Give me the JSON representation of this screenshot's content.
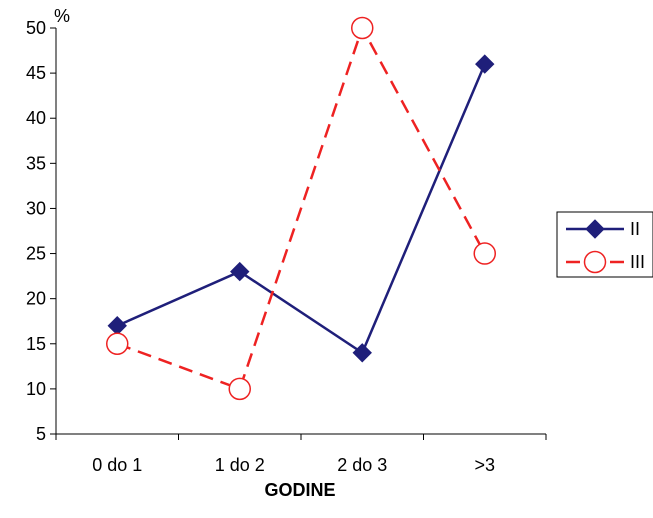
{
  "chart_data": {
    "type": "line",
    "title": "",
    "ylabel": "%",
    "xlabel": "GODINE",
    "categories": [
      "0 do 1",
      "1 do 2",
      "2 do 3",
      ">3"
    ],
    "ylim": [
      5,
      50
    ],
    "yticks": [
      5,
      10,
      15,
      20,
      25,
      30,
      35,
      40,
      45,
      50
    ],
    "grid": false,
    "legend_position": "right",
    "series": [
      {
        "name": "II",
        "values": [
          17,
          23,
          14,
          46
        ],
        "color": "#1f1f7a",
        "line": "solid",
        "marker": "diamond"
      },
      {
        "name": "III",
        "values": [
          15,
          10,
          50,
          25
        ],
        "color": "#ee2222",
        "line": "dashed",
        "marker": "open-circle"
      }
    ]
  }
}
